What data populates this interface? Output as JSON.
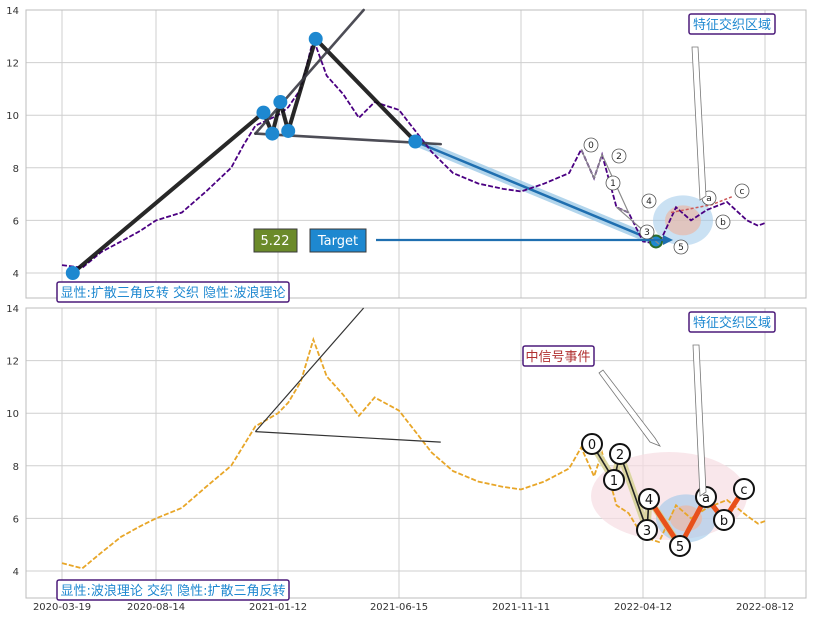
{
  "chart_data": [
    {
      "type": "line",
      "panel": "top",
      "ylim": [
        3.5,
        14
      ],
      "y_ticks": [
        "4",
        "6",
        "8",
        "10",
        "12",
        "14"
      ],
      "x_ticks": [
        "2020-03-19",
        "2020-08-14",
        "2021-01-12",
        "2021-06-15",
        "2021-11-11",
        "2022-04-12",
        "2022-08-12"
      ],
      "series": [
        {
          "color": "#4b0082",
          "style": "dashed",
          "points": [
            [
              "2020-03-19",
              4.3
            ],
            [
              "2020-04-20",
              4.2
            ],
            [
              "2020-05-20",
              4.8
            ],
            [
              "2020-06-20",
              5.2
            ],
            [
              "2020-07-20",
              5.6
            ],
            [
              "2020-08-14",
              6.0
            ],
            [
              "2020-09-15",
              6.3
            ],
            [
              "2020-10-15",
              7.1
            ],
            [
              "2020-11-15",
              8.0
            ],
            [
              "2020-12-01",
              8.9
            ],
            [
              "2020-12-15",
              9.6
            ],
            [
              "2021-01-12",
              10.0
            ],
            [
              "2021-01-25",
              10.3
            ],
            [
              "2021-02-10",
              11.0
            ],
            [
              "2021-02-26",
              12.9
            ],
            [
              "2021-03-15",
              11.5
            ],
            [
              "2021-04-05",
              10.8
            ],
            [
              "2021-04-25",
              9.9
            ],
            [
              "2021-05-15",
              10.5
            ],
            [
              "2021-06-15",
              10.2
            ],
            [
              "2021-07-05",
              9.4
            ],
            [
              "2021-07-25",
              8.6
            ],
            [
              "2021-08-20",
              7.8
            ],
            [
              "2021-09-20",
              7.4
            ],
            [
              "2021-10-20",
              7.2
            ],
            [
              "2021-11-11",
              7.1
            ],
            [
              "2021-12-10",
              7.4
            ],
            [
              "2022-01-10",
              7.8
            ],
            [
              "2022-01-25",
              8.7
            ],
            [
              "2022-02-10",
              7.6
            ],
            [
              "2022-02-20",
              8.5
            ],
            [
              "2022-03-10",
              6.5
            ],
            [
              "2022-03-25",
              6.3
            ],
            [
              "2022-04-12",
              5.2
            ],
            [
              "2022-04-28",
              5.1
            ],
            [
              "2022-05-15",
              6.5
            ],
            [
              "2022-05-30",
              6.0
            ],
            [
              "2022-06-15",
              6.4
            ],
            [
              "2022-07-05",
              6.7
            ],
            [
              "2022-07-25",
              6.0
            ],
            [
              "2022-08-05",
              5.8
            ],
            [
              "2022-08-12",
              5.9
            ]
          ]
        }
      ],
      "pattern_lines": [
        [
          [
            "2020-04-05",
            4.0
          ],
          [
            "2020-12-25",
            10.1
          ]
        ],
        [
          [
            "2020-12-25",
            10.1
          ],
          [
            "2021-01-05",
            9.3
          ]
        ],
        [
          [
            "2021-01-05",
            9.3
          ],
          [
            "2021-01-15",
            10.5
          ]
        ],
        [
          [
            "2021-01-15",
            10.5
          ],
          [
            "2021-01-25",
            9.4
          ]
        ],
        [
          [
            "2021-01-25",
            9.4
          ],
          [
            "2021-03-01",
            12.9
          ]
        ],
        [
          [
            "2021-03-01",
            12.9
          ],
          [
            "2021-07-05",
            9.0
          ]
        ],
        [
          [
            "2020-12-15",
            9.3
          ],
          [
            "2021-08-05",
            8.9
          ]
        ],
        [
          [
            "2020-12-15",
            9.3
          ],
          [
            "2021-05-01",
            14.0
          ]
        ]
      ],
      "blue_points": [
        [
          "2020-04-05",
          4.0
        ],
        [
          "2020-12-25",
          10.1
        ],
        [
          "2021-01-05",
          9.3
        ],
        [
          "2021-01-15",
          10.5
        ],
        [
          "2021-01-25",
          9.4
        ],
        [
          "2021-03-01",
          12.9
        ],
        [
          "2021-07-05",
          9.0
        ],
        [
          "2022-04-25",
          5.2
        ]
      ],
      "target_value": "5.22",
      "target_label": "Target",
      "wave_labels": [
        "0",
        "1",
        "2",
        "3",
        "4",
        "5",
        "a",
        "b",
        "c"
      ],
      "legend_text": "显性:扩散三角反转 交织 隐性:波浪理论",
      "region_label": "特征交织区域"
    },
    {
      "type": "line",
      "panel": "bottom",
      "ylim": [
        3.5,
        14
      ],
      "y_ticks": [
        "4",
        "6",
        "8",
        "10",
        "12",
        "14"
      ],
      "x_ticks": [
        "2020-03-19",
        "2020-08-14",
        "2021-01-12",
        "2021-06-15",
        "2021-11-11",
        "2022-04-12",
        "2022-08-12"
      ],
      "series": [
        {
          "color": "#e8a628",
          "style": "dashed",
          "points": [
            [
              "2020-03-19",
              4.3
            ],
            [
              "2020-04-20",
              4.1
            ],
            [
              "2020-05-20",
              4.7
            ],
            [
              "2020-06-20",
              5.3
            ],
            [
              "2020-07-20",
              5.7
            ],
            [
              "2020-08-14",
              6.0
            ],
            [
              "2020-09-15",
              6.4
            ],
            [
              "2020-10-15",
              7.2
            ],
            [
              "2020-11-15",
              8.0
            ],
            [
              "2020-12-01",
              8.8
            ],
            [
              "2020-12-15",
              9.5
            ],
            [
              "2021-01-12",
              10.0
            ],
            [
              "2021-01-25",
              10.4
            ],
            [
              "2021-02-10",
              11.2
            ],
            [
              "2021-02-26",
              12.8
            ],
            [
              "2021-03-15",
              11.4
            ],
            [
              "2021-04-05",
              10.7
            ],
            [
              "2021-04-25",
              9.9
            ],
            [
              "2021-05-15",
              10.6
            ],
            [
              "2021-06-15",
              10.1
            ],
            [
              "2021-07-05",
              9.3
            ],
            [
              "2021-07-25",
              8.5
            ],
            [
              "2021-08-20",
              7.8
            ],
            [
              "2021-09-20",
              7.4
            ],
            [
              "2021-10-20",
              7.2
            ],
            [
              "2021-11-11",
              7.1
            ],
            [
              "2021-12-10",
              7.4
            ],
            [
              "2022-01-10",
              7.9
            ],
            [
              "2022-01-25",
              8.7
            ],
            [
              "2022-02-10",
              7.6
            ],
            [
              "2022-02-20",
              8.5
            ],
            [
              "2022-03-10",
              6.5
            ],
            [
              "2022-03-25",
              6.2
            ],
            [
              "2022-04-12",
              5.3
            ],
            [
              "2022-04-28",
              5.1
            ],
            [
              "2022-05-15",
              6.5
            ],
            [
              "2022-05-30",
              6.0
            ],
            [
              "2022-06-15",
              6.4
            ],
            [
              "2022-07-05",
              6.7
            ],
            [
              "2022-07-25",
              6.1
            ],
            [
              "2022-08-05",
              5.8
            ],
            [
              "2022-08-12",
              5.9
            ]
          ]
        }
      ],
      "wave_labels": [
        "0",
        "1",
        "2",
        "3",
        "4",
        "5",
        "a",
        "b",
        "c"
      ],
      "event_label": "中信号事件",
      "legend_text": "显性:波浪理论 交织 隐性:扩散三角反转",
      "region_label": "特征交织区域"
    }
  ]
}
